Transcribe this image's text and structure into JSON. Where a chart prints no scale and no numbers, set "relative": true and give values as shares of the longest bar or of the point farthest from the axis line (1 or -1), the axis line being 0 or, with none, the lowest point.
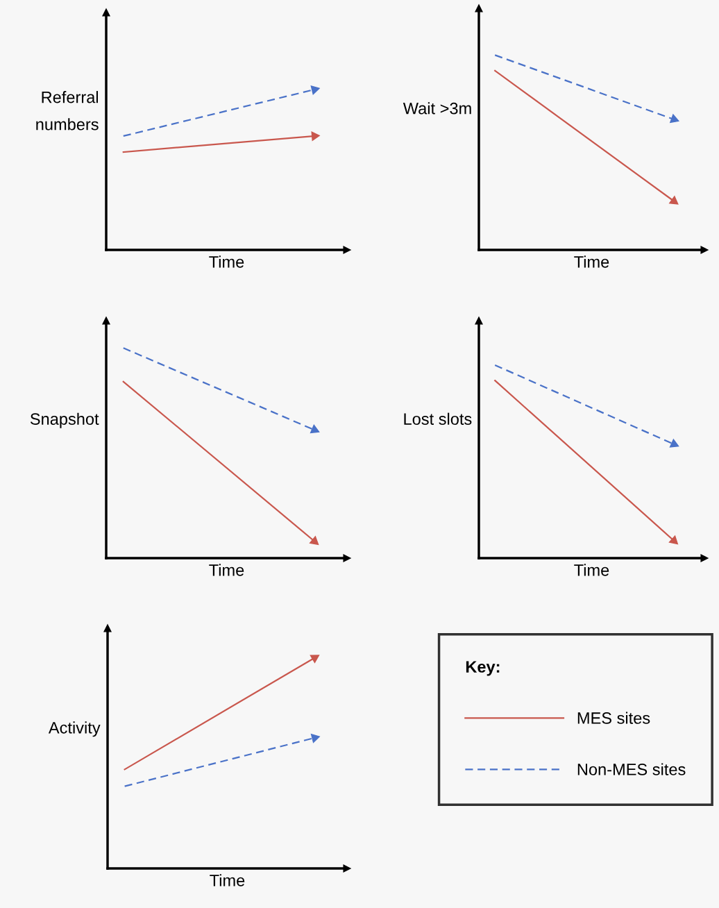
{
  "chart_data": [
    {
      "type": "line",
      "relative": true,
      "ylabel": "Referral\nnumbers",
      "xlabel": "Time",
      "categories": [
        null,
        null
      ],
      "tick_labels": false,
      "series": [
        {
          "color": "#c9574d",
          "line_style": "solid",
          "values": [
            0.61,
            0.71
          ]
        },
        {
          "color": "#4a72c8",
          "line_style": "dashed",
          "values": [
            0.71,
            1.0
          ]
        }
      ]
    },
    {
      "type": "line",
      "relative": true,
      "ylabel": "Wait >3m",
      "xlabel": "Time",
      "categories": [
        null,
        null
      ],
      "tick_labels": false,
      "series": [
        {
          "color": "#c9574d",
          "line_style": "solid",
          "values": [
            0.92,
            0.25
          ]
        },
        {
          "color": "#4a72c8",
          "line_style": "dashed",
          "values": [
            1.0,
            0.67
          ]
        }
      ]
    },
    {
      "type": "line",
      "relative": true,
      "ylabel": "Snapshot",
      "xlabel": "Time",
      "categories": [
        null,
        null
      ],
      "tick_labels": false,
      "series": [
        {
          "color": "#c9574d",
          "line_style": "solid",
          "values": [
            0.84,
            0.08
          ]
        },
        {
          "color": "#4a72c8",
          "line_style": "dashed",
          "values": [
            1.0,
            0.61
          ]
        }
      ]
    },
    {
      "type": "line",
      "relative": true,
      "ylabel": "Lost slots",
      "xlabel": "Time",
      "categories": [
        null,
        null
      ],
      "tick_labels": false,
      "series": [
        {
          "color": "#c9574d",
          "line_style": "solid",
          "values": [
            0.92,
            0.09
          ]
        },
        {
          "color": "#4a72c8",
          "line_style": "dashed",
          "values": [
            1.0,
            0.59
          ]
        }
      ]
    },
    {
      "type": "line",
      "relative": true,
      "ylabel": "Activity",
      "xlabel": "Time",
      "categories": [
        null,
        null
      ],
      "tick_labels": false,
      "legend": "right",
      "legend_title": "Key:",
      "series": [
        {
          "name": "MES sites",
          "color": "#c9574d",
          "line_style": "solid",
          "values": [
            0.47,
            1.0
          ]
        },
        {
          "name": "Non-MES sites",
          "color": "#4a72c8",
          "line_style": "dashed",
          "values": [
            0.39,
            0.62
          ]
        }
      ]
    }
  ]
}
